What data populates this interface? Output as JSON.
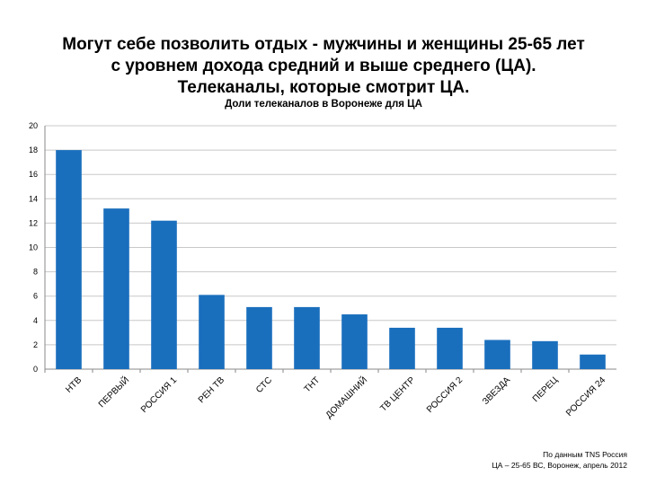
{
  "header": {
    "line1": "Могут себе позволить отдых  - мужчины и женщины 25-65 лет",
    "line2": "с уровнем дохода средний и выше среднего (ЦА).",
    "line3": "Телеканалы, которые смотрит ЦА."
  },
  "chart_data": {
    "type": "bar",
    "title": "Доли телеканалов в Воронеже для ЦА",
    "categories": [
      "НТВ",
      "ПЕРВЫЙ",
      "РОССИЯ 1",
      "РЕН ТВ",
      "СТС",
      "ТНТ",
      "ДОМАШНИЙ",
      "ТВ ЦЕНТР",
      "РОССИЯ 2",
      "ЗВЕЗДА",
      "ПЕРЕЦ",
      "РОССИЯ 24"
    ],
    "series": [
      {
        "values": [
          18.0,
          13.2,
          12.2,
          6.1,
          5.1,
          5.1,
          4.5,
          3.4,
          3.4,
          2.4,
          2.3,
          1.2
        ]
      }
    ],
    "ylim": [
      0,
      20
    ],
    "yticks": [
      0,
      2,
      4,
      6,
      8,
      10,
      12,
      14,
      16,
      18,
      20
    ],
    "grid": true,
    "legend": "none",
    "bar_color": "#1a6fbd"
  },
  "footnote": {
    "line1": "По данным TNS Россия",
    "line2": "ЦА – 25-65 ВС, Воронеж, апрель 2012"
  }
}
